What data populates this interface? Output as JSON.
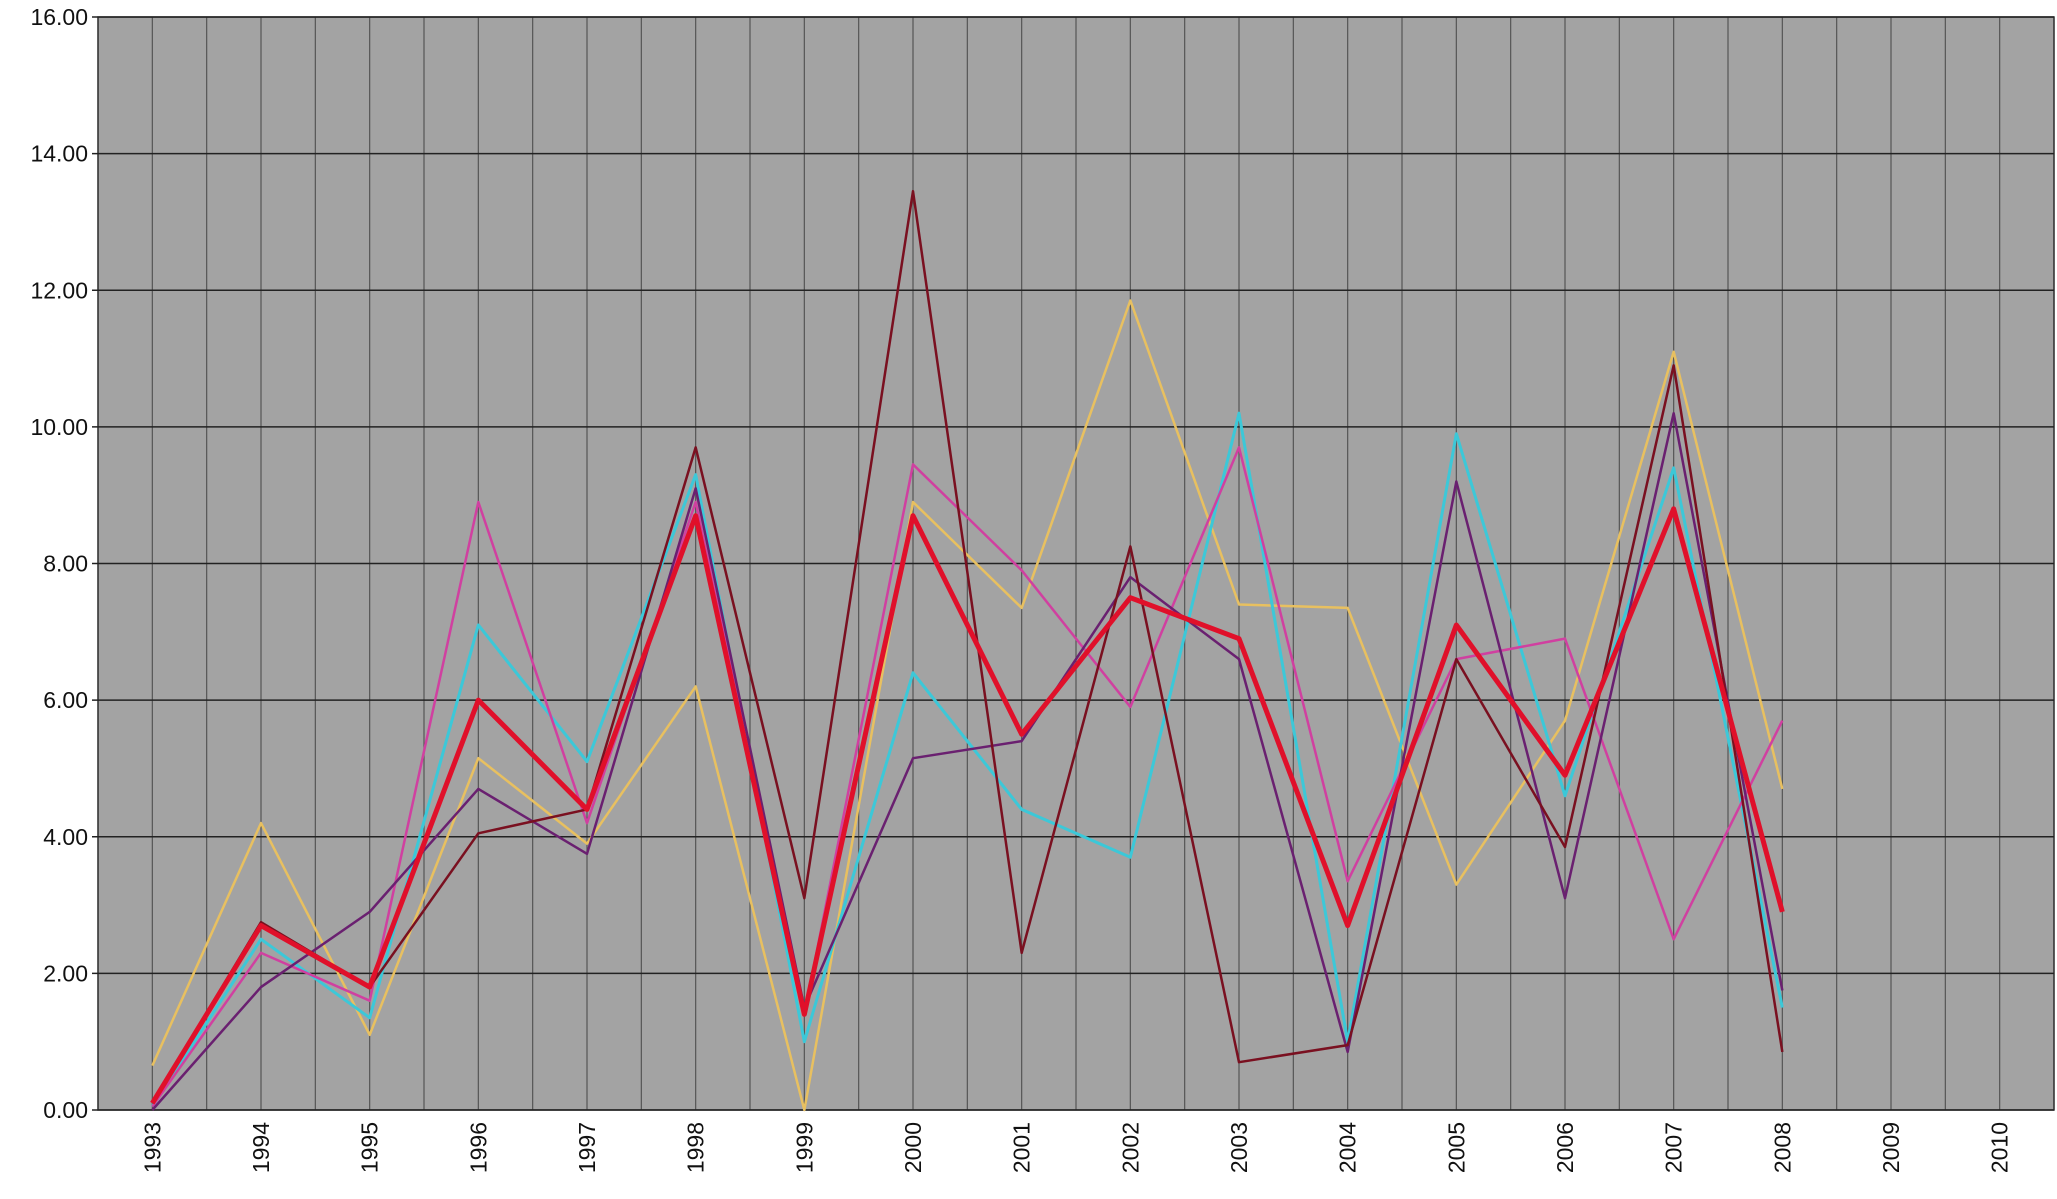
{
  "chart_data": {
    "type": "line",
    "categories": [
      "1993",
      "1994",
      "1995",
      "1996",
      "1997",
      "1998",
      "1999",
      "2000",
      "2001",
      "2002",
      "2003",
      "2004",
      "2005",
      "2006",
      "2007",
      "2008",
      "2009",
      "2010"
    ],
    "series": [
      {
        "color": "#e8c060",
        "width": 2.5,
        "values": [
          0.65,
          4.2,
          1.1,
          5.15,
          3.9,
          6.2,
          0.0,
          8.9,
          7.35,
          11.85,
          7.4,
          7.35,
          3.3,
          5.7,
          11.1,
          4.7,
          null,
          null
        ]
      },
      {
        "color": "#3cc8d8",
        "width": 3,
        "values": [
          0.05,
          2.5,
          1.35,
          7.1,
          5.1,
          9.3,
          1.0,
          6.4,
          4.4,
          3.7,
          10.2,
          1.0,
          9.9,
          4.6,
          9.4,
          1.5,
          null,
          null
        ]
      },
      {
        "color": "#d040a0",
        "width": 2.5,
        "values": [
          0.05,
          2.3,
          1.6,
          8.9,
          4.2,
          8.9,
          1.4,
          9.45,
          7.9,
          5.9,
          9.7,
          3.35,
          6.6,
          6.9,
          2.5,
          5.7,
          null,
          null
        ]
      },
      {
        "color": "#6a2070",
        "width": 2.5,
        "values": [
          0.0,
          1.8,
          2.9,
          4.7,
          3.75,
          9.1,
          1.5,
          5.15,
          5.4,
          7.8,
          6.6,
          0.85,
          9.2,
          3.1,
          10.2,
          1.75,
          null,
          null
        ]
      },
      {
        "color": "#7a1020",
        "width": 2.5,
        "values": [
          0.1,
          2.75,
          1.8,
          4.05,
          4.4,
          9.7,
          3.1,
          13.45,
          2.3,
          8.25,
          0.7,
          0.95,
          6.6,
          3.85,
          10.9,
          0.85,
          null,
          null
        ]
      },
      {
        "color": "#e0102a",
        "width": 5,
        "values": [
          0.1,
          2.7,
          1.8,
          6.0,
          4.4,
          8.7,
          1.4,
          8.7,
          5.5,
          7.5,
          6.9,
          2.7,
          7.1,
          4.9,
          8.8,
          2.9,
          null,
          null
        ]
      }
    ],
    "ylim": [
      0,
      16
    ],
    "yticks": [
      {
        "value": 0,
        "label": "0.00"
      },
      {
        "value": 2,
        "label": "2.00"
      },
      {
        "value": 4,
        "label": "4.00"
      },
      {
        "value": 6,
        "label": "6.00"
      },
      {
        "value": 8,
        "label": "8.00"
      },
      {
        "value": 10,
        "label": "10.00"
      },
      {
        "value": 12,
        "label": "12.00"
      },
      {
        "value": 14,
        "label": "14.00"
      },
      {
        "value": 16,
        "label": "16.00"
      }
    ],
    "grid": true,
    "background": "#a3a3a3"
  }
}
